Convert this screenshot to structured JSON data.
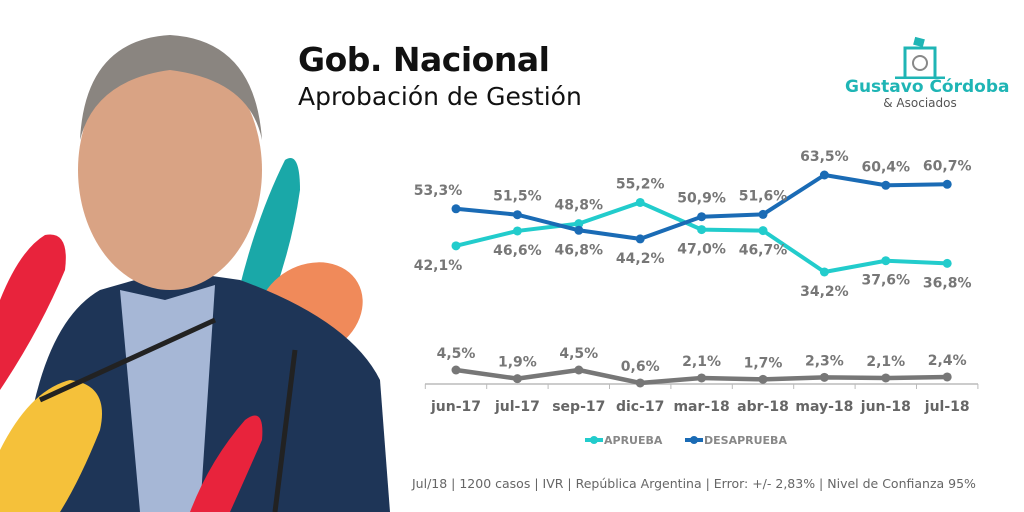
{
  "header": {
    "title": "Gob. Nacional",
    "subtitle": "Aprobación de Gestión"
  },
  "logo": {
    "brand": "Gustavo Córdoba",
    "sub": "& Asociados",
    "color": "#1fb5b5"
  },
  "footer": "Jul/18 | 1200 casos | IVR | República Argentina | Error: +/- 2,83% | Nivel de Confianza 95%",
  "chart_data": {
    "type": "line",
    "categories": [
      "jun-17",
      "jul-17",
      "sep-17",
      "dic-17",
      "mar-18",
      "abr-18",
      "may-18",
      "jun-18",
      "jul-18"
    ],
    "series": [
      {
        "name": "APRUEBA",
        "color": "#22cccc",
        "values": [
          42.1,
          46.6,
          48.8,
          55.2,
          47.0,
          46.7,
          34.2,
          37.6,
          36.8
        ],
        "labels": [
          "42,1%",
          "46,6%",
          "48,8%",
          "55,2%",
          "47,0%",
          "46,7%",
          "34,2%",
          "37,6%",
          "36,8%"
        ]
      },
      {
        "name": "DESAPRUEBA",
        "color": "#1a6bb5",
        "values": [
          53.3,
          51.5,
          46.8,
          44.2,
          50.9,
          51.6,
          63.5,
          60.4,
          60.7
        ],
        "labels": [
          "53,3%",
          "51,5%",
          "46,8%",
          "44,2%",
          "50,9%",
          "51,6%",
          "63,5%",
          "60,4%",
          "60,7%"
        ]
      },
      {
        "name": "",
        "color": "#777777",
        "values": [
          4.5,
          1.9,
          4.5,
          0.6,
          2.1,
          1.7,
          2.3,
          2.1,
          2.4
        ],
        "labels": [
          "4,5%",
          "1,9%",
          "4,5%",
          "0,6%",
          "2,1%",
          "1,7%",
          "2,3%",
          "2,1%",
          "2,4%"
        ]
      }
    ],
    "legend": "bottom",
    "grid": false,
    "value_label_color": "#777777"
  }
}
